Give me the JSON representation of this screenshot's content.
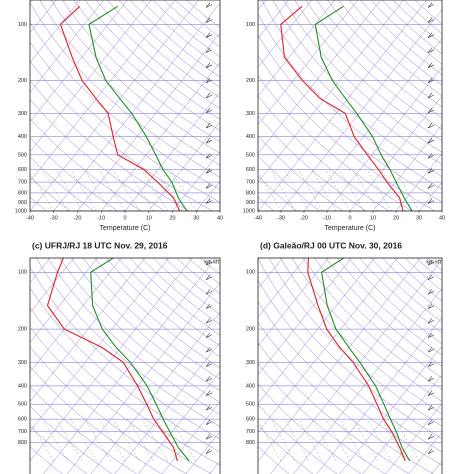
{
  "chart_data": [
    {
      "type": "skewt",
      "xlabel": "Temperature (C)",
      "xlim": [
        -40,
        40
      ],
      "ylim": [
        1000,
        74
      ],
      "log_y": true,
      "xticks": [
        -40,
        -30,
        -20,
        -10,
        0,
        10,
        20,
        30,
        40
      ],
      "yticks": [
        100,
        200,
        300,
        400,
        500,
        600,
        700,
        800,
        900,
        1000
      ],
      "pressure": [
        1000,
        850,
        700,
        600,
        500,
        400,
        300,
        250,
        200,
        150,
        100,
        80
      ],
      "series": [
        {
          "color": "#1e8f1e",
          "values": [
            26,
            18,
            10,
            2,
            -6,
            -16,
            -30,
            -40,
            -52,
            -64,
            -78,
            -72
          ]
        },
        {
          "color": "#e02020",
          "values": [
            23,
            16,
            4,
            -6,
            -22,
            -30,
            -40,
            -50,
            -62,
            -74,
            -90,
            -88
          ]
        }
      ]
    },
    {
      "type": "skewt",
      "xlabel": "Temperature (C)",
      "xlim": [
        -40,
        40
      ],
      "ylim": [
        1000,
        74
      ],
      "log_y": true,
      "xticks": [
        -40,
        -30,
        -20,
        -10,
        0,
        10,
        20,
        30,
        40
      ],
      "yticks": [
        100,
        200,
        300,
        400,
        500,
        600,
        700,
        800,
        900,
        1000
      ],
      "pressure": [
        1000,
        850,
        700,
        600,
        500,
        400,
        300,
        250,
        200,
        150,
        100,
        80
      ],
      "series": [
        {
          "color": "#1e8f1e",
          "values": [
            27,
            19,
            10,
            3,
            -6,
            -16,
            -31,
            -41,
            -53,
            -66,
            -80,
            -74
          ]
        },
        {
          "color": "#e02020",
          "values": [
            23,
            17,
            6,
            -2,
            -12,
            -24,
            -36,
            -52,
            -66,
            -82,
            -95,
            -92
          ]
        }
      ]
    },
    {
      "type": "skewt",
      "title": "(c)  UFRJ/RJ  18 UTC Nov. 29, 2016",
      "right_header": "km  kft",
      "xlim": [
        -40,
        40
      ],
      "ylim": [
        1000,
        84
      ],
      "log_y": true,
      "yticks": [
        100,
        200,
        300,
        400,
        500,
        600,
        700,
        800
      ],
      "pressure": [
        1000,
        850,
        700,
        600,
        500,
        400,
        300,
        250,
        200,
        150,
        100,
        80
      ],
      "series": [
        {
          "color": "#1e8f1e",
          "values": [
            27,
            18,
            9,
            2,
            -6,
            -16,
            -31,
            -42,
            -54,
            -66,
            -78,
            -72
          ]
        },
        {
          "color": "#e02020",
          "values": [
            22,
            16,
            6,
            -2,
            -10,
            -20,
            -34,
            -48,
            -70,
            -85,
            -92,
            -95
          ]
        }
      ]
    },
    {
      "type": "skewt",
      "title": "(d)  Galeão/RJ  00 UTC Nov. 30, 2016",
      "right_header": "km  kft",
      "xlim": [
        -40,
        40
      ],
      "ylim": [
        1000,
        84
      ],
      "log_y": true,
      "yticks": [
        100,
        200,
        300,
        400,
        500,
        600,
        700,
        800
      ],
      "pressure": [
        1000,
        850,
        700,
        600,
        500,
        400,
        300,
        250,
        200,
        150,
        100,
        80
      ],
      "series": [
        {
          "color": "#1e8f1e",
          "values": [
            26,
            18,
            10,
            3,
            -5,
            -15,
            -30,
            -40,
            -52,
            -64,
            -78,
            -72
          ]
        },
        {
          "color": "#e02020",
          "values": [
            24,
            17,
            8,
            0,
            -8,
            -18,
            -33,
            -44,
            -56,
            -68,
            -84,
            -90
          ]
        }
      ]
    }
  ]
}
